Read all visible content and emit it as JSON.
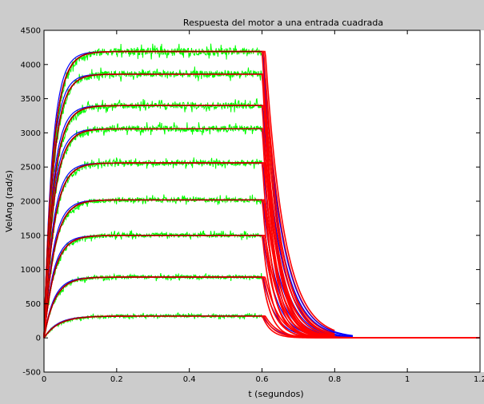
{
  "window": {
    "background_color": "#cccccc",
    "axes_background_color": "#ffffff"
  },
  "chart_data": {
    "type": "line",
    "title": "Respuesta del motor a una entrada cuadrada",
    "xlabel": "t (segundos)",
    "ylabel": "VelAng (rad/s)",
    "xlim": [
      0,
      1.2
    ],
    "ylim": [
      -500,
      4500
    ],
    "xticks": [
      0,
      0.2,
      0.4,
      0.6,
      0.8,
      1,
      1.2
    ],
    "xtick_labels": [
      "0",
      "0.2",
      "0.4",
      "0.6",
      "0.8",
      "1",
      "1.2"
    ],
    "yticks": [
      -500,
      0,
      500,
      1000,
      1500,
      2000,
      2500,
      3000,
      3500,
      4000,
      4500
    ],
    "ytick_labels": [
      "-500",
      "0",
      "500",
      "1000",
      "1500",
      "2000",
      "2500",
      "3000",
      "3500",
      "4000",
      "4500"
    ],
    "grid": false,
    "legend": "none",
    "input_step_off_time": 0.6,
    "series_colors": {
      "measured": "#00ff00",
      "model": "#ff0000",
      "model_dark": "#660000",
      "alt_model": "#0000ff"
    },
    "series": [
      {
        "steady_state": 320,
        "time_constant_rise": 0.04,
        "time_constant_fall": 0.03
      },
      {
        "steady_state": 890,
        "time_constant_rise": 0.03,
        "time_constant_fall": 0.032
      },
      {
        "steady_state": 1500,
        "time_constant_rise": 0.028,
        "time_constant_fall": 0.034
      },
      {
        "steady_state": 2020,
        "time_constant_rise": 0.028,
        "time_constant_fall": 0.036
      },
      {
        "steady_state": 2560,
        "time_constant_rise": 0.027,
        "time_constant_fall": 0.038
      },
      {
        "steady_state": 3060,
        "time_constant_rise": 0.026,
        "time_constant_fall": 0.04
      },
      {
        "steady_state": 3400,
        "time_constant_rise": 0.026,
        "time_constant_fall": 0.042
      },
      {
        "steady_state": 3860,
        "time_constant_rise": 0.025,
        "time_constant_fall": 0.044
      },
      {
        "steady_state": 4190,
        "time_constant_rise": 0.025,
        "time_constant_fall": 0.045
      }
    ]
  }
}
